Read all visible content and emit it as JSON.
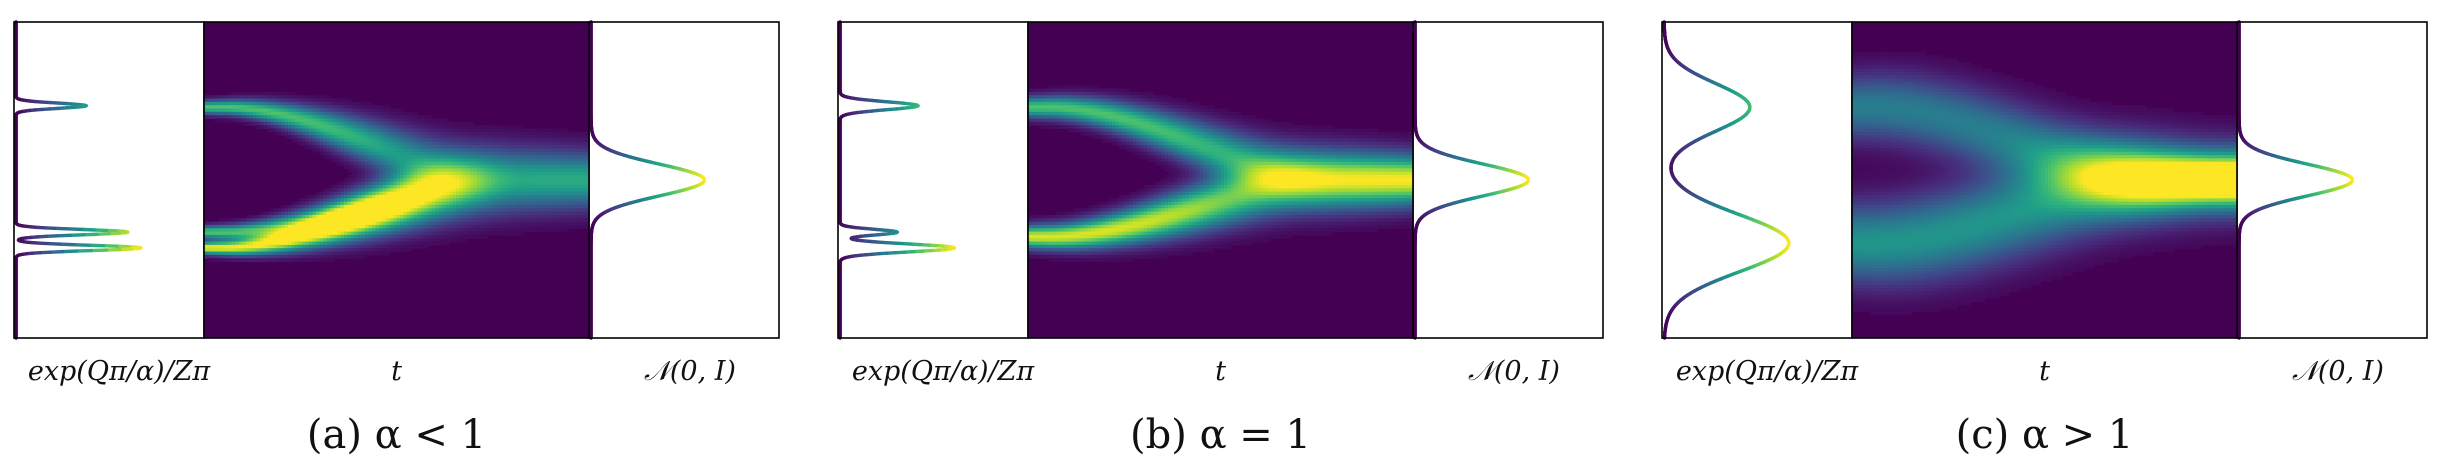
{
  "figure": {
    "panels": [
      {
        "id": "a",
        "caption": "(a)  α < 1",
        "left_label": "exp(Qπ/α)/Zπ",
        "center_label": "t",
        "right_label": "𝒩(0, I)",
        "left_density": {
          "modes": [
            {
              "mu": 0.265,
              "sigma": 0.0083,
              "weight": 0.27
            },
            {
              "mu": 0.665,
              "sigma": 0.0083,
              "weight": 0.43
            },
            {
              "mu": 0.715,
              "sigma": 0.0083,
              "weight": 0.48
            }
          ]
        },
        "flow": {
          "tracks": [
            {
              "y0": 0.27,
              "w0": 0.014,
              "peak": 0.72
            },
            {
              "y0": 0.665,
              "w0": 0.013,
              "peak": 0.72
            },
            {
              "y0": 0.715,
              "w0": 0.013,
              "peak": 1.0
            }
          ],
          "blur_growth": 0.045,
          "end_peak": 0.58
        }
      },
      {
        "id": "b",
        "caption": "(b)  α = 1",
        "left_label": "exp(Qπ/α)/Zπ",
        "center_label": "t",
        "right_label": "𝒩(0, I)",
        "left_density": {
          "modes": [
            {
              "mu": 0.265,
              "sigma": 0.0125,
              "weight": 0.3
            },
            {
              "mu": 0.665,
              "sigma": 0.009,
              "weight": 0.22
            },
            {
              "mu": 0.715,
              "sigma": 0.0125,
              "weight": 0.44
            }
          ]
        },
        "flow": {
          "tracks": [
            {
              "y0": 0.27,
              "w0": 0.022,
              "peak": 0.72
            },
            {
              "y0": 0.68,
              "w0": 0.024,
              "peak": 0.95
            }
          ],
          "blur_growth": 0.03,
          "end_peak": 0.95
        }
      },
      {
        "id": "c",
        "caption": "(c)  α > 1",
        "left_label": "exp(Qπ/α)/Zπ",
        "center_label": "t",
        "right_label": "𝒩(0, I)",
        "left_density": {
          "modes": [
            {
              "mu": 0.27,
              "sigma": 0.075,
              "weight": 0.33
            },
            {
              "mu": 0.7,
              "sigma": 0.09,
              "weight": 0.48
            }
          ]
        },
        "flow": {
          "tracks": [
            {
              "y0": 0.27,
              "w0": 0.07,
              "peak": 0.42
            },
            {
              "y0": 0.7,
              "w0": 0.085,
              "peak": 0.52
            }
          ],
          "blur_growth": 0.0,
          "end_peak": 1.0
        }
      }
    ],
    "right_density": {
      "mu": 0.5,
      "sigma": 0.05,
      "weight": 0.45
    },
    "colormap": "viridis",
    "colors": {
      "background_dark": "#440154",
      "curve_low": "#440154",
      "curve_high": "#fde725"
    }
  }
}
